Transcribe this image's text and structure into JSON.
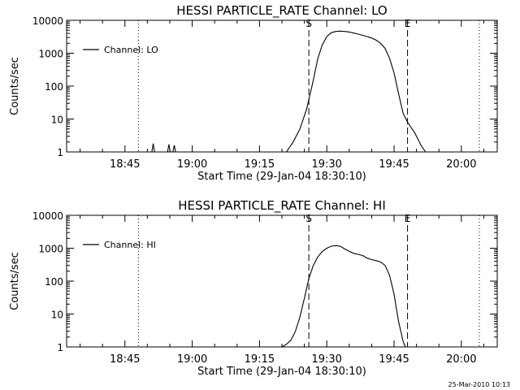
{
  "footer_timestamp": "25-Mar-2010 10:13",
  "chart_data": [
    {
      "type": "line",
      "title": "HESSI PARTICLE_RATE Channel: LO",
      "xlabel": "Start Time (29-Jan-04 18:30:10)",
      "ylabel": "Counts/sec",
      "yscale": "log",
      "ylim": [
        1,
        10000
      ],
      "xlim": [
        "18:32",
        "20:08"
      ],
      "xtick_labels": [
        "18:45",
        "19:00",
        "19:15",
        "19:30",
        "19:45",
        "20:00"
      ],
      "ytick_labels": [
        "1",
        "10",
        "100",
        "1000",
        "10000"
      ],
      "legend": {
        "position": "top-left",
        "entries": [
          "Channel: LO"
        ]
      },
      "markers": [
        {
          "label": "",
          "time": "18:48",
          "style": "dotted"
        },
        {
          "label": "S",
          "time": "19:26",
          "style": "dashed"
        },
        {
          "label": "E",
          "time": "19:48",
          "style": "dashed"
        },
        {
          "label": "",
          "time": "20:04",
          "style": "dotted"
        }
      ],
      "series": [
        {
          "name": "Channel: LO",
          "x": [
            "18:51",
            "18:51.3",
            "18:51.6",
            "18:54.5",
            "18:54.8",
            "18:55.1",
            "18:55.7",
            "18:56",
            "18:56.3",
            "19:21",
            "19:22.5",
            "19:24",
            "19:25.5",
            "19:27",
            "19:28",
            "19:29",
            "19:30",
            "19:31",
            "19:32",
            "19:33",
            "19:34",
            "19:35",
            "19:36",
            "19:37",
            "19:38",
            "19:39",
            "19:40",
            "19:41",
            "19:42",
            "19:43",
            "19:44",
            "19:45",
            "19:45.5",
            "19:46",
            "19:46.5",
            "19:47",
            "19:48",
            "19:49",
            "19:49.5",
            "19:50",
            "19:51",
            "19:52"
          ],
          "y": [
            1,
            1.8,
            1,
            1,
            1.7,
            1,
            1,
            1.6,
            1,
            1,
            2,
            5,
            20,
            150,
            700,
            1800,
            3200,
            4200,
            4600,
            4700,
            4600,
            4400,
            4100,
            3800,
            3500,
            3200,
            2900,
            2500,
            2000,
            1400,
            700,
            250,
            120,
            60,
            30,
            15,
            8,
            5,
            4,
            3,
            1.6,
            1
          ]
        }
      ]
    },
    {
      "type": "line",
      "title": "HESSI PARTICLE_RATE Channel: HI",
      "xlabel": "Start Time (29-Jan-04 18:30:10)",
      "ylabel": "Counts/sec",
      "yscale": "log",
      "ylim": [
        1,
        10000
      ],
      "xlim": [
        "18:32",
        "20:08"
      ],
      "xtick_labels": [
        "18:45",
        "19:00",
        "19:15",
        "19:30",
        "19:45",
        "20:00"
      ],
      "ytick_labels": [
        "1",
        "10",
        "100",
        "1000",
        "10000"
      ],
      "legend": {
        "position": "top-left",
        "entries": [
          "Channel: HI"
        ]
      },
      "markers": [
        {
          "label": "",
          "time": "18:48",
          "style": "dotted"
        },
        {
          "label": "S",
          "time": "19:26",
          "style": "dashed"
        },
        {
          "label": "E",
          "time": "19:48",
          "style": "dashed"
        },
        {
          "label": "",
          "time": "20:04",
          "style": "dotted"
        }
      ],
      "series": [
        {
          "name": "Channel: HI",
          "x": [
            "19:20",
            "19:21",
            "19:22",
            "19:23",
            "19:24",
            "19:25",
            "19:26",
            "19:27",
            "19:28",
            "19:29",
            "19:30",
            "19:31",
            "19:32",
            "19:33",
            "19:34",
            "19:35",
            "19:36",
            "19:37",
            "19:38",
            "19:39",
            "19:40",
            "19:41",
            "19:42",
            "19:43",
            "19:44",
            "19:45",
            "19:45.5",
            "19:46",
            "19:46.5",
            "19:47",
            "19:47.5"
          ],
          "y": [
            1,
            1.2,
            1.6,
            3,
            8,
            30,
            120,
            300,
            550,
            800,
            1000,
            1150,
            1200,
            1150,
            950,
            800,
            700,
            650,
            600,
            500,
            450,
            420,
            380,
            300,
            150,
            40,
            15,
            6,
            3,
            1.5,
            1
          ]
        }
      ]
    }
  ]
}
